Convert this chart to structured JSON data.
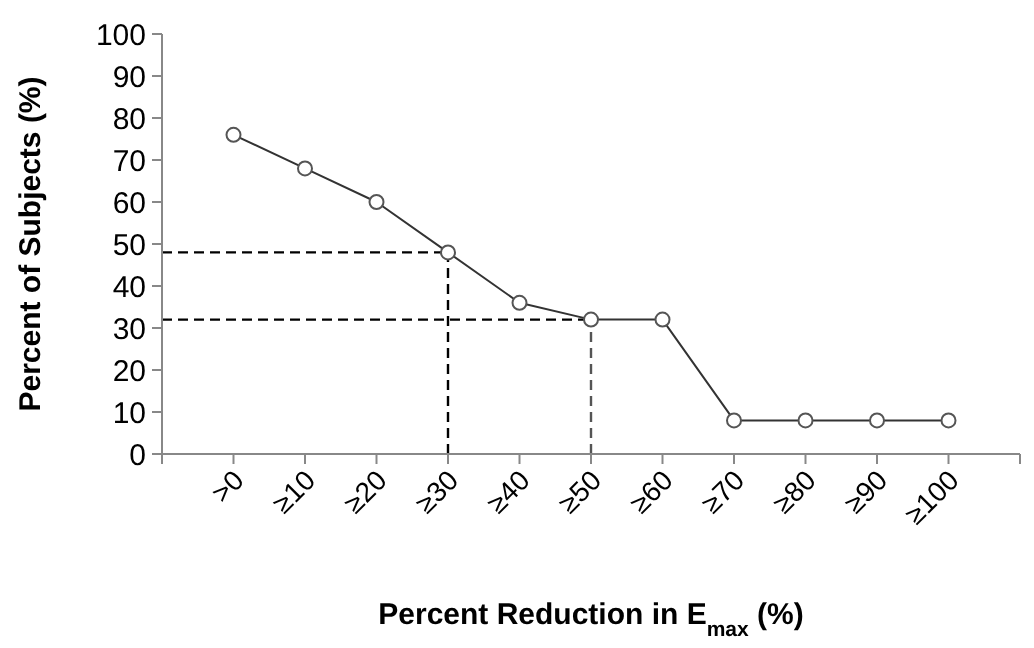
{
  "chart_data": {
    "type": "line",
    "xlabel": "Percent Reduction in E$_{max}$ (%)",
    "ylabel": "Percent of Subjects (%)",
    "categories": [
      ">0",
      "≥10",
      "≥20",
      "≥30",
      "≥40",
      "≥50",
      "≥60",
      "≥70",
      "≥80",
      "≥90",
      "≥100"
    ],
    "series": [
      {
        "color": "#333333",
        "values": [
          76,
          68,
          60,
          48,
          36,
          32,
          32,
          8,
          8,
          8,
          8
        ]
      }
    ],
    "ylim": [
      0,
      100
    ],
    "yticks": [
      0,
      10,
      20,
      30,
      40,
      50,
      60,
      70,
      80,
      90,
      100
    ],
    "marker": "circle",
    "line_style": "solid",
    "grid": false,
    "ref_lines": [
      {
        "axis": "y",
        "value": 48,
        "color": "#000000",
        "line_style": "dashed"
      },
      {
        "axis": "x",
        "value": "≥30",
        "color": "#000000",
        "line_style": "dashed"
      },
      {
        "axis": "y",
        "value": 32,
        "color": "#000000",
        "line_style": "dashed"
      },
      {
        "axis": "x",
        "value": "≥50",
        "color": "#555555",
        "line_style": "dashed"
      }
    ]
  }
}
